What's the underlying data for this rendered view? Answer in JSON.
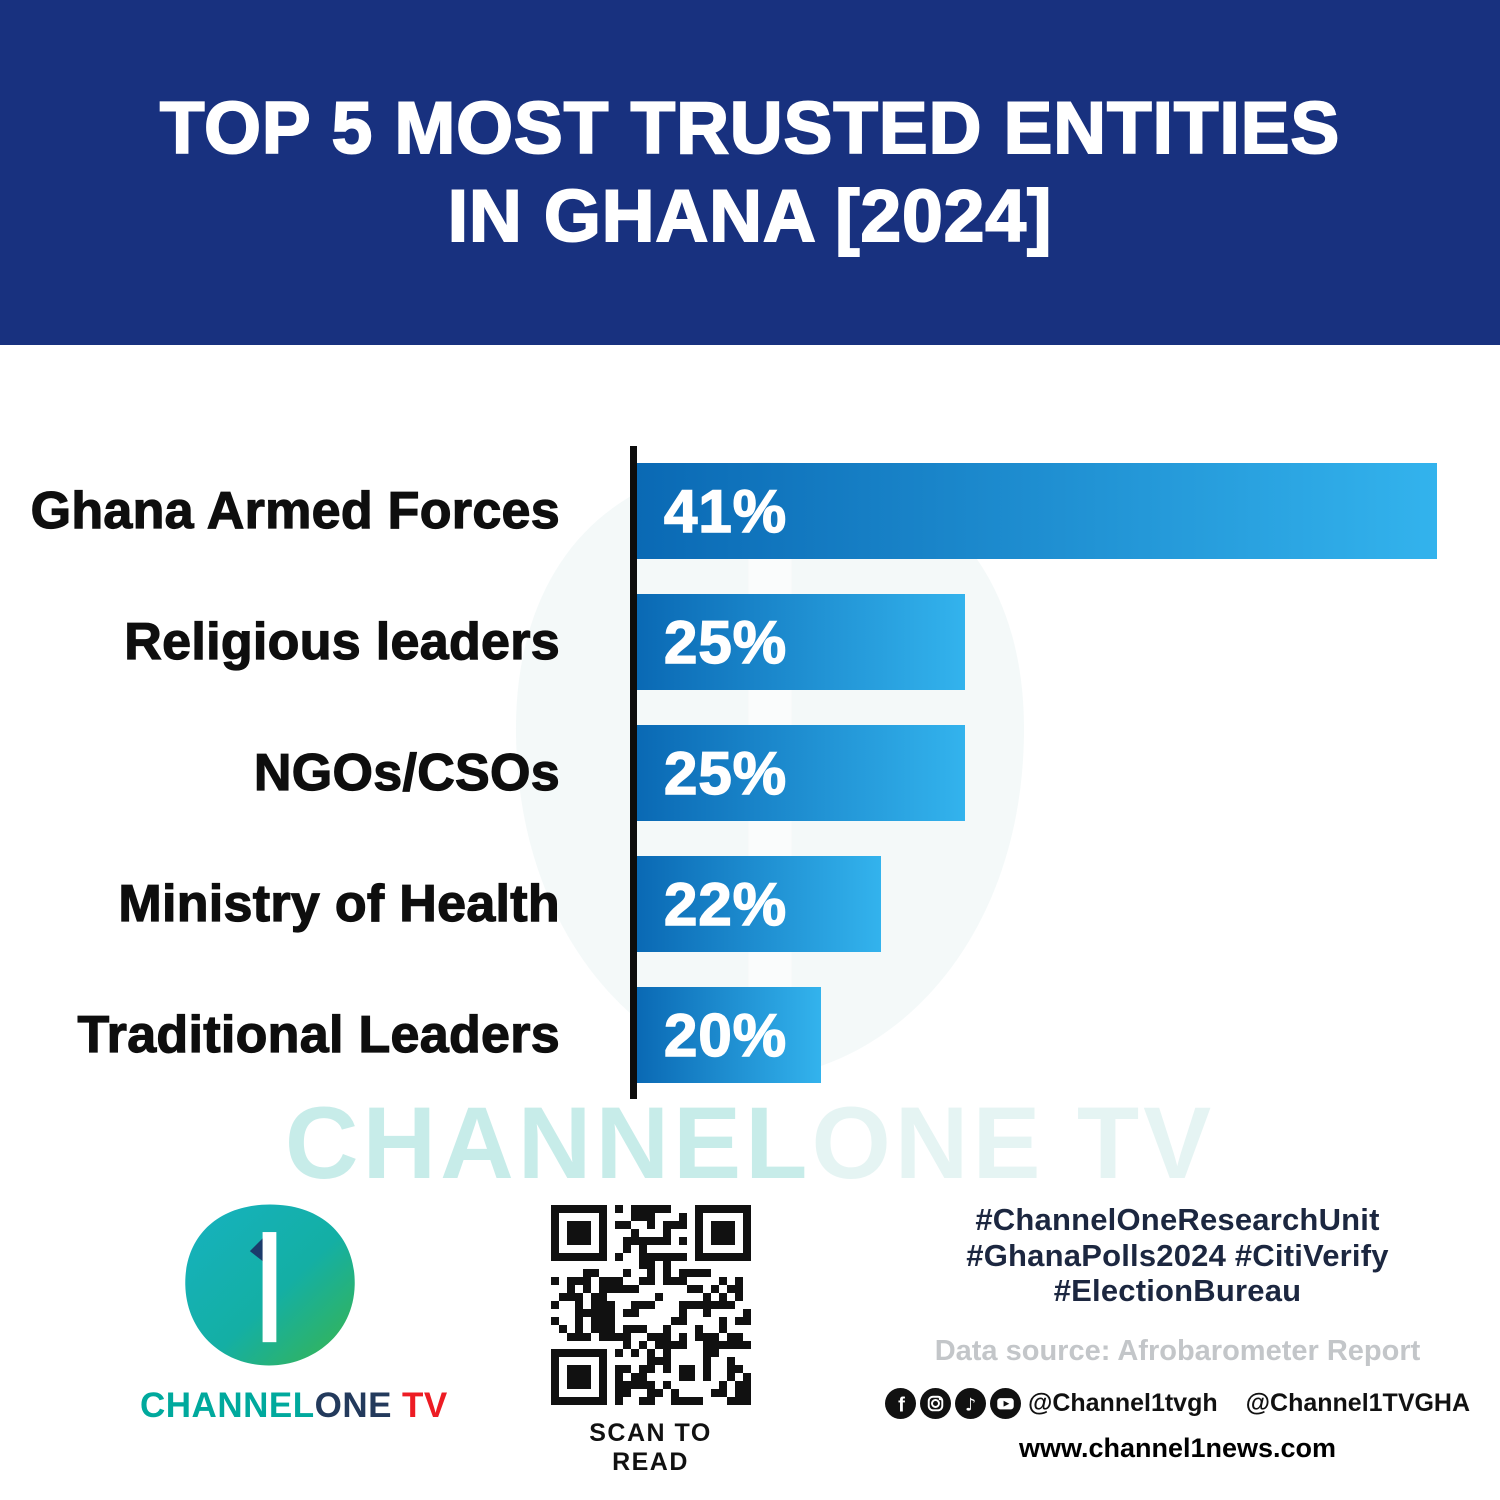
{
  "header": {
    "title_line1": "TOP 5 MOST TRUSTED ENTITIES",
    "title_line2": "IN GHANA [2024]"
  },
  "chart_data": {
    "type": "bar",
    "orientation": "horizontal",
    "title": "TOP 5 MOST TRUSTED ENTITIES IN GHANA [2024]",
    "categories": [
      "Ghana Armed Forces",
      "Religious leaders",
      "NGOs/CSOs",
      "Ministry of Health",
      "Traditional Leaders"
    ],
    "values": [
      41,
      25,
      25,
      22,
      20
    ],
    "value_labels": [
      "41%",
      "25%",
      "25%",
      "22%",
      "20%"
    ],
    "unit": "%",
    "display_widths_pct": [
      100,
      41,
      41,
      30.5,
      23
    ],
    "bar_gradient": [
      "#0A69B4",
      "#33B3ED"
    ],
    "axis_color": "#0d0d0d",
    "category_label_color": "#0e0e0e",
    "value_label_color": "#FFFFFF",
    "grid": false,
    "legend": false
  },
  "watermark": {
    "text_primary": "CHANNEL",
    "text_secondary": "ONE TV"
  },
  "footer": {
    "logo": {
      "numeral": "1",
      "brand_channel": "CHANNEL",
      "brand_one": "ONE",
      "brand_tv": "TV",
      "colors": {
        "teal": "#00A99D",
        "green": "#3BB54A",
        "dark": "#233A5C",
        "red": "#ED1C24"
      }
    },
    "qr": {
      "caption": "SCAN TO READ"
    },
    "hashtags": [
      "#ChannelOneResearchUnit",
      "#GhanaPolls2024 #CitiVerify",
      "#ElectionBureau"
    ],
    "data_source": "Data source: Afrobarometer Report",
    "social": {
      "icons": [
        "facebook-icon",
        "instagram-icon",
        "tiktok-icon",
        "youtube-icon",
        "x-icon"
      ],
      "handle_primary": "@Channel1tvgh",
      "handle_x": "@Channel1TVGHA"
    },
    "website": "www.channel1news.com"
  },
  "colors": {
    "header_bg": "#18317F",
    "background": "#FFFFFF"
  }
}
